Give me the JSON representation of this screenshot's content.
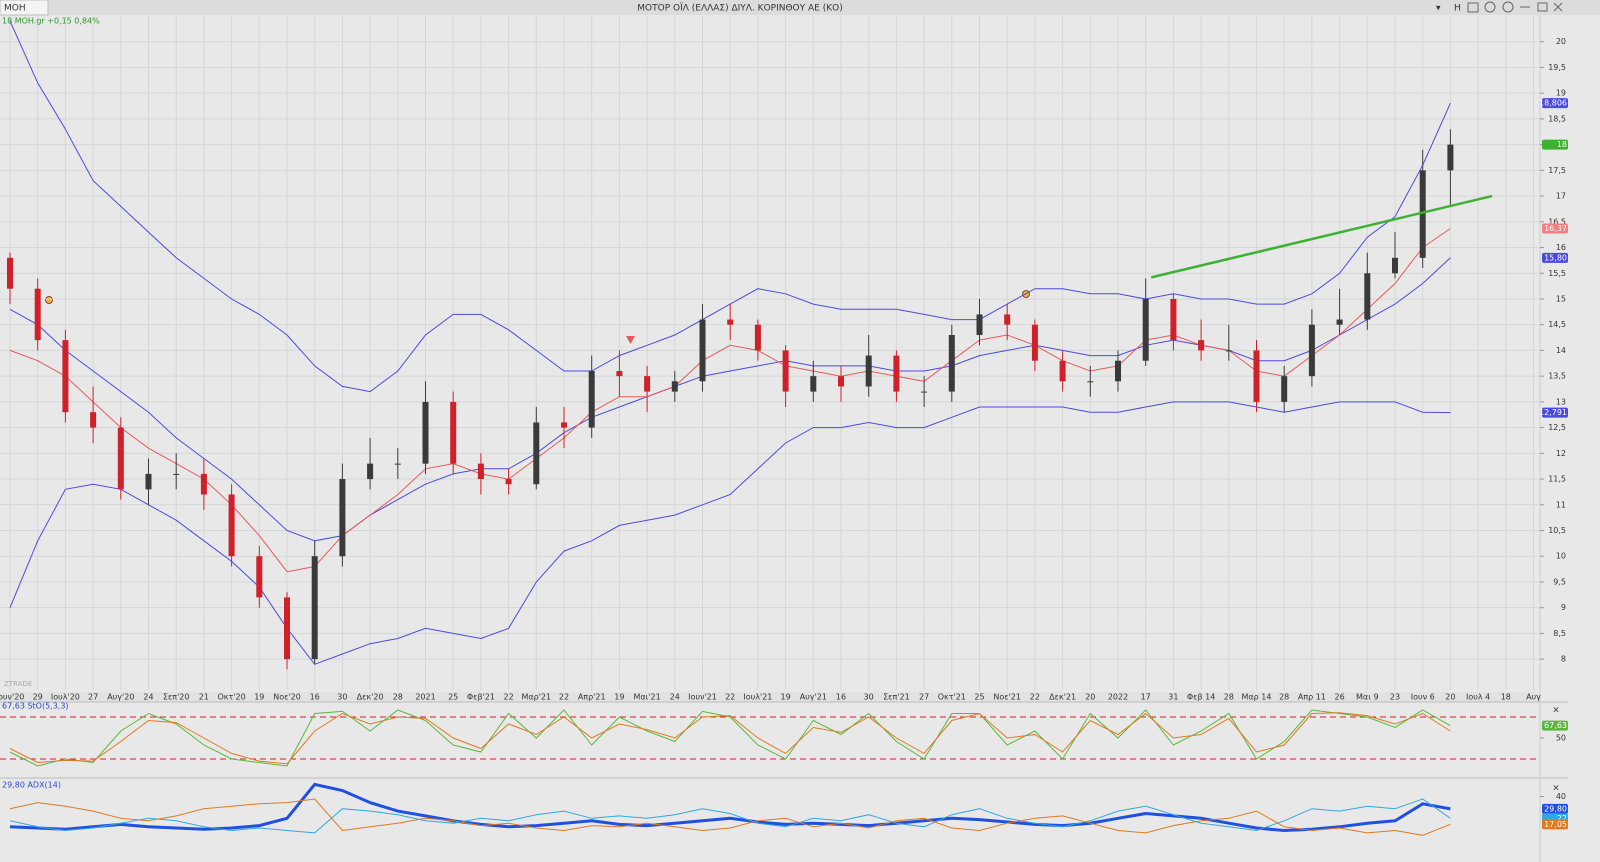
{
  "window": {
    "symbol": "MOH",
    "title": "ΜΟΤΟΡ ΟΪΛ (ΕΛΛΑΣ) ΔΙΥΛ. ΚΟΡΙΝΘΟΥ ΑΕ (ΚΟ)",
    "button": "H"
  },
  "chart_data": [
    {
      "type": "candlestick",
      "legend": "18 MOH.gr +0,15 0,84%",
      "watermark": "ZTRADE",
      "categories": [
        "Ιουν'20",
        "29",
        "Ιουλ'20",
        "27",
        "Αυγ'20",
        "24",
        "Σεπ'20",
        "21",
        "Οκτ'20",
        "19",
        "Νοε'20",
        "16",
        "30",
        "Δεκ'20",
        "28",
        "2021",
        "25",
        "Φεβ'21",
        "22",
        "Μαρ'21",
        "22",
        "Απρ'21",
        "19",
        "Μαι'21",
        "24",
        "Ιουν'21",
        "22",
        "Ιουλ'21",
        "19",
        "Αυγ'21",
        "16",
        "30",
        "Σεπ'21",
        "27",
        "Οκτ'21",
        "25",
        "Νοε'21",
        "22",
        "Δεκ'21",
        "20",
        "2022",
        "17",
        "31",
        "Φεβ 14",
        "28",
        "Μαρ 14",
        "28",
        "Απρ 11",
        "26",
        "Μαι 9",
        "23",
        "Ιουν 6",
        "20",
        "Ιουλ 4",
        "18",
        "Αυγ"
      ],
      "open": [
        15.8,
        15.2,
        14.2,
        12.8,
        12.5,
        11.3,
        11.6,
        11.6,
        11.2,
        10.0,
        9.2,
        8.0,
        10.0,
        11.5,
        11.8,
        11.8,
        13.0,
        11.8,
        11.5,
        11.4,
        12.6,
        12.5,
        13.6,
        13.5,
        13.2,
        13.4,
        14.6,
        14.5,
        14.0,
        13.2,
        13.5,
        13.3,
        13.9,
        13.2,
        13.2,
        14.3,
        14.7,
        14.5,
        13.8,
        13.4,
        13.4,
        13.8,
        15.0,
        14.2,
        14.0,
        14.0,
        13.0,
        13.5,
        14.5,
        14.6,
        15.5,
        15.8,
        17.5,
        null,
        null,
        null
      ],
      "high": [
        15.9,
        15.4,
        14.4,
        13.3,
        12.7,
        11.9,
        12.0,
        11.9,
        11.4,
        10.2,
        9.3,
        10.3,
        11.8,
        12.3,
        12.1,
        13.4,
        13.2,
        12.0,
        11.7,
        12.9,
        12.9,
        13.9,
        14.0,
        13.7,
        13.6,
        14.9,
        14.9,
        14.6,
        14.1,
        13.8,
        13.7,
        14.3,
        14.0,
        13.5,
        14.5,
        15.0,
        14.9,
        14.6,
        14.0,
        13.7,
        14.0,
        15.4,
        15.1,
        14.6,
        14.5,
        14.2,
        13.7,
        14.8,
        15.2,
        15.9,
        16.3,
        17.9,
        18.3,
        null,
        null,
        null
      ],
      "low": [
        14.9,
        14.0,
        12.6,
        12.2,
        11.1,
        11.0,
        11.3,
        10.9,
        9.8,
        9.0,
        7.8,
        7.9,
        9.8,
        11.3,
        11.5,
        11.6,
        11.6,
        11.2,
        11.2,
        11.3,
        12.1,
        12.3,
        13.1,
        12.8,
        13.0,
        13.2,
        14.2,
        13.8,
        12.9,
        13.0,
        13.0,
        13.1,
        13.0,
        12.9,
        13.0,
        14.1,
        14.2,
        13.6,
        13.2,
        13.1,
        13.2,
        13.7,
        14.0,
        13.8,
        13.8,
        12.8,
        12.8,
        13.3,
        14.3,
        14.4,
        15.4,
        15.6,
        16.8,
        null,
        null,
        null
      ],
      "close": [
        15.2,
        14.2,
        12.8,
        12.5,
        11.3,
        11.6,
        11.6,
        11.2,
        10.0,
        9.2,
        8.0,
        10.0,
        11.5,
        11.8,
        11.8,
        13.0,
        11.8,
        11.5,
        11.4,
        12.6,
        12.5,
        13.6,
        13.5,
        13.2,
        13.4,
        14.6,
        14.5,
        14.0,
        13.2,
        13.5,
        13.3,
        13.9,
        13.2,
        13.2,
        14.3,
        14.7,
        14.5,
        13.8,
        13.4,
        13.4,
        13.8,
        15.0,
        14.2,
        14.0,
        14.0,
        13.0,
        13.5,
        14.5,
        14.6,
        15.5,
        15.8,
        17.5,
        18,
        null,
        null,
        null
      ],
      "up_color": "#3a3a3a",
      "down_color": "#d0202a",
      "series": [
        {
          "color": "#4a4ae0",
          "values": [
            20.4,
            19.2,
            18.3,
            17.3,
            16.8,
            16.3,
            15.8,
            15.4,
            15.0,
            14.7,
            14.3,
            13.7,
            13.3,
            13.2,
            13.6,
            14.3,
            14.7,
            14.7,
            14.4,
            14.0,
            13.6,
            13.6,
            13.9,
            14.1,
            14.3,
            14.6,
            14.9,
            15.2,
            15.1,
            14.9,
            14.8,
            14.8,
            14.8,
            14.7,
            14.6,
            14.6,
            14.9,
            15.2,
            15.2,
            15.1,
            15.1,
            15.0,
            15.1,
            15.0,
            15.0,
            14.9,
            14.9,
            15.1,
            15.5,
            16.2,
            16.6,
            17.6,
            18.806,
            null,
            null,
            null
          ]
        },
        {
          "color": "#4a4ae0",
          "values": [
            9.0,
            10.3,
            11.3,
            11.4,
            11.3,
            11.0,
            10.7,
            10.3,
            9.9,
            9.4,
            8.6,
            7.9,
            8.1,
            8.3,
            8.4,
            8.6,
            8.5,
            8.4,
            8.6,
            9.5,
            10.1,
            10.3,
            10.6,
            10.7,
            10.8,
            11.0,
            11.2,
            11.7,
            12.2,
            12.5,
            12.5,
            12.6,
            12.5,
            12.5,
            12.7,
            12.9,
            12.9,
            12.9,
            12.9,
            12.8,
            12.8,
            12.9,
            13.0,
            13.0,
            13.0,
            12.9,
            12.8,
            12.9,
            13.0,
            13.0,
            13.0,
            12.8,
            12.791,
            null,
            null,
            null
          ]
        },
        {
          "color": "#4a4ae0",
          "values": [
            14.8,
            14.5,
            14.0,
            13.6,
            13.2,
            12.8,
            12.3,
            11.9,
            11.5,
            11.0,
            10.5,
            10.3,
            10.4,
            10.8,
            11.1,
            11.4,
            11.6,
            11.7,
            11.7,
            12.0,
            12.4,
            12.7,
            12.9,
            13.1,
            13.3,
            13.5,
            13.6,
            13.7,
            13.8,
            13.7,
            13.7,
            13.7,
            13.6,
            13.6,
            13.7,
            13.9,
            14.0,
            14.1,
            14.0,
            13.9,
            13.9,
            14.1,
            14.2,
            14.1,
            14.0,
            13.8,
            13.8,
            14.0,
            14.3,
            14.6,
            14.9,
            15.3,
            15.8,
            null,
            null,
            null
          ]
        },
        {
          "color": "#e85a5a",
          "values": [
            14.0,
            13.8,
            13.5,
            13.0,
            12.5,
            12.1,
            11.8,
            11.5,
            11.0,
            10.4,
            9.7,
            9.8,
            10.4,
            10.8,
            11.2,
            11.7,
            11.8,
            11.6,
            11.5,
            11.9,
            12.3,
            12.8,
            13.1,
            13.1,
            13.3,
            13.8,
            14.1,
            14.0,
            13.7,
            13.6,
            13.5,
            13.6,
            13.5,
            13.4,
            13.8,
            14.2,
            14.3,
            14.1,
            13.8,
            13.6,
            13.7,
            14.2,
            14.3,
            14.1,
            14.0,
            13.6,
            13.5,
            13.9,
            14.3,
            14.8,
            15.3,
            16.0,
            16.37,
            null,
            null,
            null
          ]
        }
      ],
      "tags": [
        {
          "value": 18.806,
          "label": "18,806",
          "color": "#4a4ae0"
        },
        {
          "value": 18,
          "label": "18",
          "color": "#3cb232"
        },
        {
          "value": 16.37,
          "label": "16,37",
          "color": "#f08080"
        },
        {
          "value": 15.8,
          "label": "15,80",
          "color": "#4a4ae0"
        },
        {
          "value": 12.791,
          "label": "12,791",
          "color": "#4a4ae0"
        }
      ],
      "trendline": {
        "x": [
          41.2,
          53.5
        ],
        "y": [
          15.42,
          17.0
        ],
        "color": "#3cb232"
      },
      "ylim": [
        7.4,
        20.5
      ],
      "yticks": [
        8,
        {
          "value": 8.5,
          "label": "8,5"
        },
        9,
        {
          "value": 9.5,
          "label": "9,5"
        },
        10,
        {
          "value": 10.5,
          "label": "10,5"
        },
        11,
        {
          "value": 11.5,
          "label": "11,5"
        },
        12,
        {
          "value": 12.5,
          "label": "12,5"
        },
        13,
        {
          "value": 13.5,
          "label": "13,5"
        },
        14,
        {
          "value": 14.5,
          "label": "14,5"
        },
        15,
        {
          "value": 15.5,
          "label": "15,5"
        },
        16,
        {
          "value": 16.5,
          "label": "16,5"
        },
        17,
        {
          "value": 17.5,
          "label": "17,5"
        },
        18,
        {
          "value": 18.5,
          "label": "18,5"
        },
        19,
        {
          "value": 19.5,
          "label": "19,5"
        },
        20
      ],
      "grid": true
    },
    {
      "type": "line",
      "legend": "67,63 StO(5,3,3)",
      "series": [
        {
          "color": "#5cb83c",
          "values": [
            30,
            10,
            20,
            15,
            60,
            85,
            70,
            40,
            20,
            15,
            10,
            85,
            88,
            60,
            90,
            75,
            40,
            30,
            85,
            50,
            90,
            40,
            80,
            60,
            45,
            88,
            80,
            40,
            20,
            75,
            55,
            85,
            45,
            20,
            85,
            85,
            40,
            60,
            20,
            85,
            50,
            90,
            40,
            60,
            85,
            20,
            45,
            90,
            85,
            80,
            65,
            90,
            67.63,
            null,
            null,
            null
          ]
        },
        {
          "color": "#e07a20",
          "values": [
            35,
            15,
            18,
            17,
            45,
            75,
            72,
            50,
            28,
            17,
            13,
            60,
            85,
            70,
            80,
            78,
            50,
            35,
            70,
            55,
            80,
            50,
            70,
            62,
            50,
            80,
            82,
            50,
            28,
            65,
            58,
            80,
            50,
            28,
            75,
            85,
            50,
            55,
            30,
            75,
            55,
            85,
            50,
            55,
            78,
            30,
            40,
            85,
            86,
            82,
            70,
            85,
            60,
            null,
            null,
            null
          ]
        }
      ],
      "levels": [
        80,
        20
      ],
      "level_color": "#d0202a",
      "tags": [
        {
          "value": 67.63,
          "label": "67,63",
          "color": "#5cb83c"
        }
      ],
      "ylim": [
        0,
        100
      ],
      "yticks": [
        50
      ],
      "grid": false
    },
    {
      "type": "line",
      "legend": "29,80 ADX(14)",
      "series": [
        {
          "color": "#2050e0",
          "width": 3,
          "values": [
            15,
            14,
            13,
            15,
            17,
            15,
            14,
            13,
            14,
            16,
            22,
            50,
            45,
            35,
            28,
            24,
            20,
            17,
            15,
            16,
            18,
            20,
            17,
            16,
            18,
            20,
            22,
            19,
            17,
            18,
            17,
            16,
            18,
            20,
            22,
            21,
            19,
            17,
            16,
            18,
            22,
            26,
            24,
            22,
            18,
            14,
            12,
            13,
            15,
            18,
            20,
            34,
            29.8,
            null,
            null,
            null
          ]
        },
        {
          "color": "#30a8e0",
          "width": 1,
          "values": [
            20,
            15,
            12,
            14,
            18,
            22,
            20,
            15,
            12,
            14,
            12,
            10,
            30,
            28,
            25,
            20,
            18,
            22,
            20,
            25,
            28,
            22,
            24,
            22,
            25,
            30,
            26,
            18,
            15,
            22,
            20,
            25,
            18,
            15,
            25,
            30,
            22,
            18,
            15,
            20,
            28,
            32,
            25,
            18,
            15,
            12,
            20,
            30,
            28,
            32,
            30,
            38,
            22,
            null,
            null,
            null
          ]
        },
        {
          "color": "#e07a20",
          "width": 1,
          "values": [
            30,
            35,
            32,
            28,
            22,
            20,
            24,
            30,
            32,
            34,
            35,
            38,
            12,
            15,
            18,
            22,
            20,
            16,
            18,
            14,
            12,
            16,
            15,
            18,
            15,
            12,
            14,
            20,
            22,
            15,
            18,
            14,
            20,
            22,
            14,
            12,
            18,
            22,
            24,
            18,
            12,
            10,
            16,
            20,
            22,
            28,
            15,
            12,
            14,
            10,
            12,
            8,
            17.05,
            null,
            null,
            null
          ]
        }
      ],
      "tags": [
        {
          "value": 29.8,
          "label": "29,80",
          "color": "#2050e0"
        },
        {
          "value": 22,
          "label": "22",
          "color": "#30a8e0"
        },
        {
          "value": 17.05,
          "label": "17,05",
          "color": "#e07a20"
        }
      ],
      "ylim": [
        0,
        52
      ],
      "yticks": [
        40
      ],
      "grid": false
    }
  ]
}
